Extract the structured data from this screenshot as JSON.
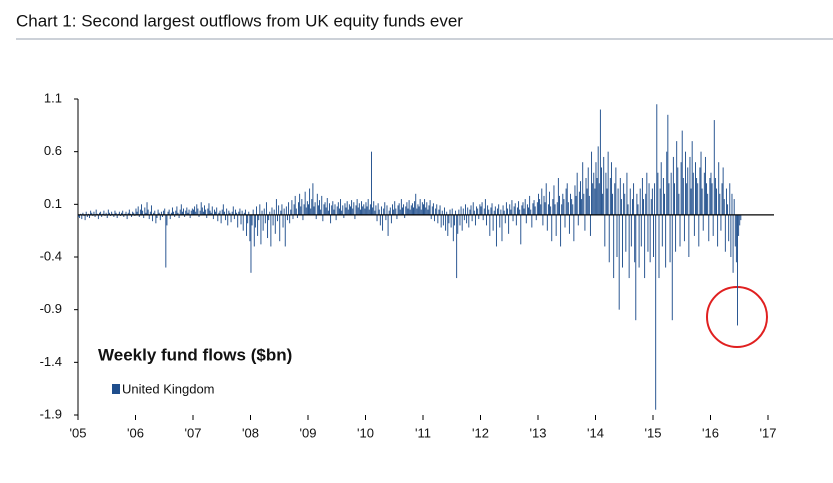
{
  "chart_data": {
    "type": "bar",
    "title": "Chart 1: Second largest outflows from UK equity funds ever",
    "annotation": "Weekly fund flows ($bn)",
    "xlim": [
      0,
      624
    ],
    "xticks": [
      {
        "value": 0,
        "label": "'05"
      },
      {
        "value": 52,
        "label": "'06"
      },
      {
        "value": 104,
        "label": "'07"
      },
      {
        "value": 156,
        "label": "'08"
      },
      {
        "value": 208,
        "label": "'09"
      },
      {
        "value": 260,
        "label": "'10"
      },
      {
        "value": 312,
        "label": "'11"
      },
      {
        "value": 364,
        "label": "'12"
      },
      {
        "value": 416,
        "label": "'13"
      },
      {
        "value": 468,
        "label": "'14"
      },
      {
        "value": 520,
        "label": "'15"
      },
      {
        "value": 572,
        "label": "'16"
      },
      {
        "value": 624,
        "label": "'17"
      }
    ],
    "ylim": [
      -1.9,
      1.1
    ],
    "yticks": [
      1.1,
      0.6,
      0.1,
      -0.4,
      -0.9,
      -1.4,
      -1.9
    ],
    "grid": false,
    "series": [
      {
        "name": "United Kingdom",
        "color": "#1f4e8c",
        "values": [
          -0.02,
          -0.03,
          0.01,
          -0.04,
          0.02,
          -0.01,
          -0.05,
          0.03,
          -0.02,
          0.01,
          -0.03,
          0.04,
          0.02,
          -0.01,
          0.03,
          -0.02,
          0.05,
          0.01,
          -0.04,
          0.02,
          0.03,
          -0.02,
          0.01,
          0.04,
          -0.01,
          0.02,
          -0.03,
          0.05,
          0.02,
          -0.01,
          0.03,
          0.01,
          -0.02,
          0.04,
          0.02,
          -0.03,
          0.01,
          0.03,
          -0.01,
          0.02,
          0.04,
          -0.02,
          0.01,
          0.03,
          -0.04,
          0.02,
          0.05,
          0.01,
          -0.02,
          0.03,
          0.02,
          -0.01,
          0.06,
          0.03,
          0.08,
          -0.02,
          0.05,
          0.1,
          0.04,
          -0.03,
          0.07,
          0.02,
          0.12,
          0.05,
          -0.04,
          0.03,
          0.09,
          -0.06,
          0.02,
          0.04,
          -0.08,
          -0.03,
          0.05,
          0.02,
          -0.05,
          0.03,
          -0.02,
          0.04,
          0.06,
          -0.5,
          -0.1,
          0.03,
          0.05,
          -0.04,
          0.02,
          0.07,
          0.03,
          -0.02,
          0.04,
          0.08,
          0.02,
          -0.03,
          0.05,
          0.1,
          0.03,
          0.06,
          -0.02,
          0.04,
          0.07,
          0.02,
          0.05,
          -0.03,
          0.04,
          0.06,
          0.05,
          0.08,
          0.03,
          0.1,
          0.06,
          -0.02,
          0.04,
          0.12,
          0.07,
          0.03,
          0.09,
          0.05,
          -0.03,
          0.06,
          0.11,
          0.04,
          0.02,
          0.08,
          -0.04,
          0.05,
          0.03,
          0.07,
          -0.06,
          0.02,
          0.04,
          -0.08,
          0.05,
          0.1,
          0.03,
          -0.05,
          0.06,
          -0.1,
          0.04,
          0.02,
          -0.07,
          0.03,
          0.08,
          -0.04,
          0.05,
          0.02,
          -0.12,
          0.03,
          0.06,
          -0.09,
          0.04,
          -0.15,
          0.02,
          0.05,
          -0.2,
          -0.08,
          0.03,
          -0.25,
          -0.55,
          -0.1,
          0.05,
          -0.3,
          -0.12,
          0.08,
          -0.2,
          -0.05,
          0.1,
          -0.28,
          0.04,
          -0.15,
          0.06,
          -0.08,
          0.12,
          -0.22,
          -0.05,
          0.03,
          -0.3,
          0.07,
          -0.1,
          0.05,
          -0.18,
          0.15,
          -0.06,
          0.09,
          -0.25,
          0.04,
          0.1,
          -0.12,
          0.06,
          -0.3,
          0.08,
          -0.05,
          0.12,
          -0.08,
          0.05,
          0.14,
          -0.04,
          0.1,
          0.18,
          0.06,
          -0.03,
          0.12,
          0.2,
          0.08,
          0.15,
          -0.05,
          0.1,
          0.22,
          0.07,
          0.13,
          0.1,
          0.25,
          0.06,
          0.15,
          0.3,
          0.08,
          0.12,
          -0.04,
          0.2,
          0.09,
          0.14,
          0.05,
          0.18,
          -0.06,
          0.1,
          0.12,
          0.07,
          0.16,
          0.04,
          0.11,
          -0.08,
          0.09,
          0.13,
          0.05,
          0.1,
          -0.05,
          0.08,
          0.12,
          0.06,
          0.15,
          0.04,
          0.09,
          -0.03,
          0.11,
          0.07,
          0.13,
          0.05,
          0.1,
          0.08,
          0.14,
          0.06,
          0.12,
          -0.04,
          0.09,
          0.15,
          0.07,
          0.11,
          0.05,
          0.13,
          0.08,
          0.1,
          0.06,
          0.12,
          0.08,
          0.15,
          0.05,
          0.1,
          0.6,
          0.07,
          0.13,
          0.04,
          0.09,
          -0.06,
          0.11,
          0.05,
          -0.1,
          0.08,
          -0.15,
          0.06,
          0.12,
          -0.05,
          0.09,
          -0.2,
          0.04,
          0.07,
          -0.08,
          0.1,
          0.05,
          0.13,
          0.06,
          -0.04,
          0.09,
          0.11,
          0.05,
          0.15,
          0.07,
          0.1,
          -0.03,
          0.08,
          0.12,
          0.06,
          0.14,
          0.05,
          0.09,
          0.11,
          0.07,
          0.13,
          0.2,
          0.06,
          0.1,
          0.08,
          0.15,
          0.05,
          0.12,
          0.1,
          0.15,
          0.07,
          0.12,
          0.05,
          0.09,
          0.14,
          -0.04,
          0.08,
          0.11,
          -0.06,
          0.06,
          0.1,
          -0.08,
          0.05,
          0.09,
          -0.12,
          0.04,
          -0.1,
          0.07,
          -0.15,
          0.03,
          -0.2,
          -0.08,
          0.05,
          -0.12,
          0.06,
          -0.25,
          -0.1,
          0.04,
          -0.6,
          -0.18,
          0.05,
          -0.1,
          0.08,
          -0.15,
          0.06,
          -0.05,
          0.1,
          -0.08,
          0.07,
          -0.12,
          0.05,
          0.09,
          -0.06,
          0.12,
          0.04,
          -0.1,
          0.08,
          0.06,
          -0.04,
          0.1,
          0.08,
          0.12,
          -0.05,
          0.06,
          0.15,
          -0.1,
          0.09,
          0.05,
          -0.2,
          0.07,
          0.11,
          -0.15,
          0.04,
          0.08,
          -0.3,
          0.06,
          0.1,
          -0.12,
          0.05,
          -0.25,
          0.09,
          0.04,
          -0.08,
          0.12,
          0.06,
          -0.18,
          0.1,
          0.05,
          0.14,
          -0.06,
          0.08,
          0.11,
          -0.1,
          0.07,
          0.13,
          0.05,
          -0.28,
          0.09,
          0.12,
          0.06,
          0.15,
          -0.08,
          0.1,
          0.07,
          0.18,
          0.05,
          -0.12,
          0.11,
          0.14,
          0.08,
          -0.05,
          0.12,
          0.2,
          0.15,
          0.1,
          0.25,
          -0.1,
          0.18,
          0.12,
          0.3,
          -0.15,
          0.1,
          0.22,
          0.08,
          -0.25,
          0.15,
          0.28,
          0.1,
          -0.2,
          0.12,
          0.35,
          0.18,
          -0.3,
          0.1,
          0.2,
          0.15,
          -0.12,
          0.25,
          0.3,
          0.12,
          -0.18,
          0.2,
          0.15,
          0.1,
          -0.25,
          0.28,
          0.18,
          0.4,
          -0.1,
          0.22,
          0.32,
          0.15,
          0.5,
          0.2,
          -0.15,
          0.35,
          0.25,
          0.45,
          0.18,
          -0.2,
          0.6,
          0.3,
          0.4,
          0.25,
          0.5,
          0.35,
          0.65,
          0.3,
          1.0,
          0.45,
          0.2,
          0.55,
          -0.3,
          0.4,
          0.25,
          0.6,
          -0.45,
          0.35,
          0.5,
          0.2,
          -0.6,
          0.3,
          0.45,
          -0.4,
          0.25,
          -0.9,
          0.35,
          0.15,
          -0.5,
          0.3,
          0.2,
          -0.35,
          0.4,
          0.1,
          -0.6,
          0.25,
          -0.3,
          0.15,
          0.3,
          -0.45,
          -1.0,
          0.2,
          0.1,
          -0.5,
          0.25,
          -0.3,
          0.35,
          0.15,
          -0.6,
          0.2,
          0.4,
          -0.35,
          0.3,
          -0.45,
          0.15,
          0.25,
          -0.4,
          0.3,
          -1.85,
          1.05,
          0.4,
          -0.6,
          0.25,
          0.5,
          -0.3,
          0.35,
          0.2,
          -0.5,
          0.6,
          0.95,
          0.3,
          -0.45,
          0.4,
          -1.0,
          0.55,
          0.3,
          -0.35,
          0.7,
          0.45,
          0.2,
          -0.3,
          0.5,
          0.8,
          0.35,
          -0.25,
          0.6,
          0.3,
          0.45,
          -0.4,
          0.55,
          0.25,
          0.7,
          0.4,
          -0.2,
          0.5,
          0.35,
          0.3,
          -0.3,
          0.45,
          0.6,
          0.25,
          -0.15,
          0.4,
          0.55,
          0.3,
          0.2,
          -0.25,
          0.35,
          0.4,
          0.3,
          -0.2,
          0.9,
          0.35,
          0.25,
          -0.3,
          0.5,
          0.2,
          -0.15,
          0.3,
          0.45,
          0.15,
          -0.35,
          0.25,
          0.1,
          -0.25,
          0.3,
          -0.4,
          0.2,
          -0.55,
          0.15,
          -0.3,
          -0.45,
          -1.05,
          -0.2,
          -0.1,
          -0.05
        ]
      }
    ]
  }
}
